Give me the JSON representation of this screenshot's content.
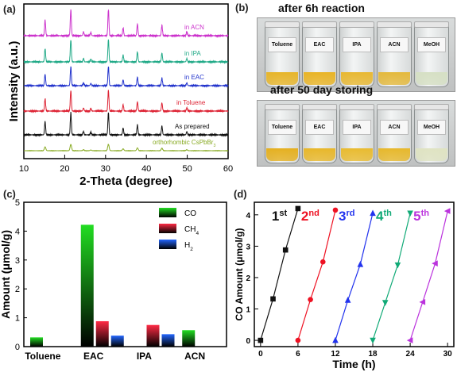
{
  "panel_letters": {
    "a": "(a)",
    "b": "(b)",
    "c": "(c)",
    "d": "(d)"
  },
  "photo": {
    "title_top": "after 6h reaction",
    "title_bottom": "after 50 day storing",
    "vials_top": [
      {
        "label": "Toluene",
        "color": "#e7b52a"
      },
      {
        "label": "EAC",
        "color": "#e9b426"
      },
      {
        "label": "IPA",
        "color": "#e8b832"
      },
      {
        "label": "ACN",
        "color": "#e4b93d"
      },
      {
        "label": "MeOH",
        "color": "#d6e0c4"
      }
    ],
    "vials_bottom": [
      {
        "label": "Toluene",
        "color": "#e5b020"
      },
      {
        "label": "EAC",
        "color": "#e8b72a"
      },
      {
        "label": "IPA",
        "color": "#e9bb30"
      },
      {
        "label": "ACN",
        "color": "#e7b82c"
      },
      {
        "label": "MeOH",
        "color": "#dfe3c2"
      }
    ]
  },
  "chart_data": [
    {
      "panel": "a",
      "type": "line",
      "xlabel": "2-Theta (degree)",
      "ylabel": "Intensity (a.u.)",
      "xlim": [
        10,
        60
      ],
      "xticks": [
        10,
        20,
        30,
        40,
        50,
        60
      ],
      "peaks": [
        15.2,
        21.5,
        24.6,
        26.4,
        30.7,
        34.3,
        37.8,
        43.8,
        49.9
      ],
      "peak_heights": [
        0.6,
        1.0,
        0.15,
        0.12,
        1.0,
        0.3,
        0.45,
        0.4,
        0.15
      ],
      "series": [
        {
          "name": "in ACN",
          "color": "#cc33cc"
        },
        {
          "name": "in IPA",
          "color": "#22aa88"
        },
        {
          "name": "in EAC",
          "color": "#2233cc"
        },
        {
          "name": "in Toluene",
          "color": "#dd2233"
        },
        {
          "name": "As prepared",
          "color": "#111111"
        },
        {
          "name": "orthorhombic CsPbBr3",
          "color": "#88aa22",
          "label_parts": [
            "orthorhombic CsPbBr",
            "3"
          ]
        }
      ]
    },
    {
      "panel": "c",
      "type": "bar",
      "ylabel": "Amount (μmol/g)",
      "ylim": [
        0,
        5
      ],
      "yticks": [
        0,
        1,
        2,
        3,
        4,
        5
      ],
      "categories": [
        "Toluene",
        "EAC",
        "IPA",
        "ACN"
      ],
      "series": [
        {
          "name": "CO",
          "color": "#22dd22",
          "values": [
            0.32,
            4.22,
            0.0,
            0.57
          ]
        },
        {
          "name": "CH4",
          "label_parts": [
            "CH",
            "4"
          ],
          "color": "#ff2a44",
          "values": [
            0.0,
            0.88,
            0.75,
            0.0
          ]
        },
        {
          "name": "H2",
          "label_parts": [
            "H",
            "2"
          ],
          "color": "#2266ff",
          "values": [
            0.0,
            0.38,
            0.43,
            0.0
          ]
        }
      ]
    },
    {
      "panel": "d",
      "type": "line",
      "xlabel": "Time (h)",
      "ylabel": "CO Amount (μmol/g)",
      "xlim": [
        -1,
        31
      ],
      "ylim": [
        -0.2,
        4.4
      ],
      "xticks": [
        0,
        6,
        12,
        18,
        24,
        30
      ],
      "yticks": [
        0,
        1,
        2,
        3,
        4
      ],
      "series": [
        {
          "name": "1st",
          "label_parts": [
            "1",
            "st"
          ],
          "color": "#111111",
          "marker": "square",
          "x": [
            0,
            2,
            4,
            6
          ],
          "y": [
            0,
            1.32,
            2.88,
            4.2
          ]
        },
        {
          "name": "2nd",
          "label_parts": [
            "2",
            "nd"
          ],
          "color": "#ee1122",
          "marker": "circle",
          "x": [
            6,
            8,
            10,
            12
          ],
          "y": [
            0,
            1.3,
            2.5,
            4.15
          ]
        },
        {
          "name": "3rd",
          "label_parts": [
            "3",
            "rd"
          ],
          "color": "#2233ee",
          "marker": "triangle",
          "x": [
            12,
            14,
            16,
            18
          ],
          "y": [
            0,
            1.28,
            2.42,
            4.05
          ]
        },
        {
          "name": "4th",
          "label_parts": [
            "4",
            "th"
          ],
          "color": "#11aa77",
          "marker": "triangle-down",
          "x": [
            18,
            20,
            22,
            24
          ],
          "y": [
            0,
            1.2,
            2.4,
            4.05
          ]
        },
        {
          "name": "5th",
          "label_parts": [
            "5",
            "th"
          ],
          "color": "#bb33dd",
          "marker": "triangle-left",
          "x": [
            24,
            26,
            28,
            30
          ],
          "y": [
            0,
            1.22,
            2.45,
            4.12
          ]
        }
      ]
    }
  ]
}
